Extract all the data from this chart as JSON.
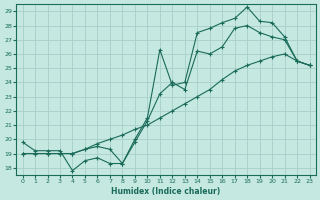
{
  "title": "",
  "xlabel": "Humidex (Indice chaleur)",
  "ylabel": "",
  "bg_color": "#c5e8e0",
  "grid_color": "#a8cfc8",
  "line_color": "#1a6b5a",
  "xlim": [
    -0.5,
    23.5
  ],
  "ylim": [
    17.5,
    29.5
  ],
  "xticks": [
    0,
    1,
    2,
    3,
    4,
    5,
    6,
    7,
    8,
    9,
    10,
    11,
    12,
    13,
    14,
    15,
    16,
    17,
    18,
    19,
    20,
    21,
    22,
    23
  ],
  "yticks": [
    18,
    19,
    20,
    21,
    22,
    23,
    24,
    25,
    26,
    27,
    28,
    29
  ],
  "line1_x": [
    0,
    1,
    2,
    3,
    4,
    5,
    6,
    7,
    8,
    9,
    10,
    11,
    12,
    13,
    14,
    15,
    16,
    17,
    18,
    19,
    20,
    21,
    22,
    23
  ],
  "line1_y": [
    19.0,
    19.0,
    19.0,
    19.0,
    19.0,
    19.3,
    19.5,
    19.3,
    18.3,
    19.8,
    21.3,
    23.2,
    24.0,
    23.5,
    26.2,
    26.0,
    26.5,
    27.8,
    28.0,
    27.5,
    27.2,
    27.0,
    25.5,
    25.2
  ],
  "line2_x": [
    0,
    1,
    2,
    3,
    4,
    5,
    6,
    7,
    8,
    9,
    10,
    11,
    12,
    13,
    14,
    15,
    16,
    17,
    18,
    19,
    20,
    21,
    22,
    23
  ],
  "line2_y": [
    19.8,
    19.2,
    19.2,
    19.2,
    17.8,
    18.5,
    18.7,
    18.3,
    18.3,
    20.0,
    21.5,
    26.3,
    23.8,
    24.0,
    27.5,
    27.8,
    28.2,
    28.5,
    29.3,
    28.3,
    28.2,
    27.2,
    25.5,
    25.2
  ],
  "line3_x": [
    0,
    1,
    2,
    3,
    4,
    5,
    6,
    7,
    8,
    9,
    10,
    11,
    12,
    13,
    14,
    15,
    16,
    17,
    18,
    19,
    20,
    21,
    22,
    23
  ],
  "line3_y": [
    19.0,
    19.0,
    19.0,
    19.0,
    19.0,
    19.3,
    19.7,
    20.0,
    20.3,
    20.7,
    21.0,
    21.5,
    22.0,
    22.5,
    23.0,
    23.5,
    24.2,
    24.8,
    25.2,
    25.5,
    25.8,
    26.0,
    25.5,
    25.2
  ]
}
